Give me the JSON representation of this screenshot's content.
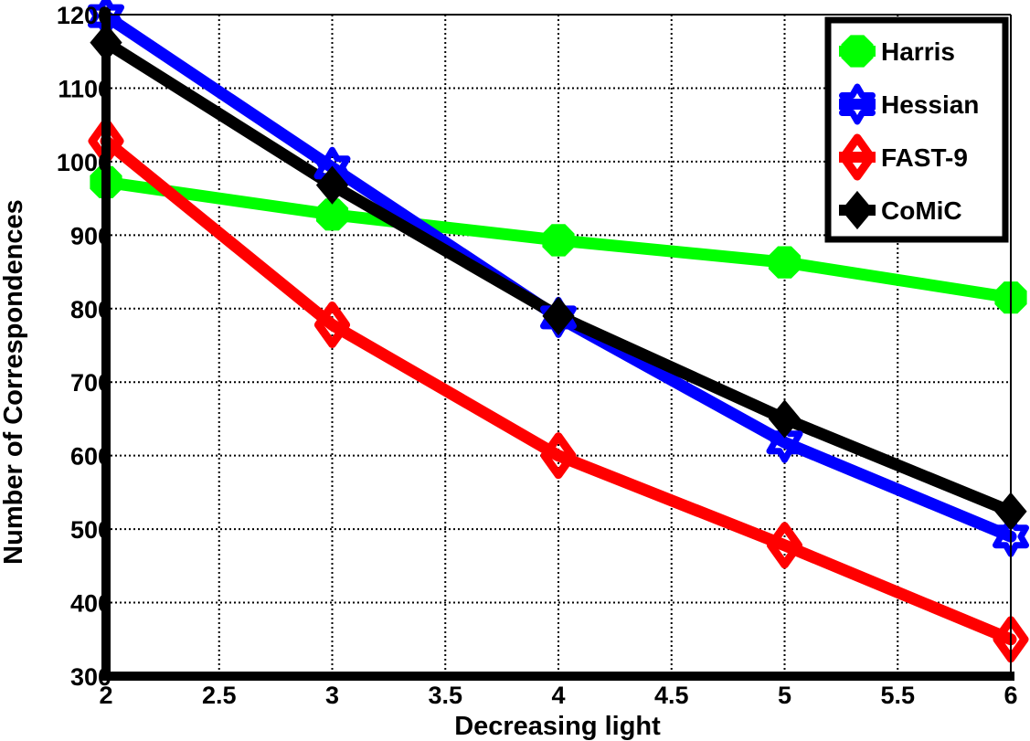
{
  "chart_data": {
    "type": "line",
    "title": "",
    "xlabel": "Decreasing light",
    "ylabel": "Number of Correspondences",
    "xlim": [
      2,
      6
    ],
    "ylim": [
      300,
      1200
    ],
    "x_ticks": [
      "2",
      "2.5",
      "3",
      "3.5",
      "4",
      "4.5",
      "5",
      "5.5",
      "6"
    ],
    "y_ticks": [
      "300",
      "400",
      "500",
      "600",
      "700",
      "800",
      "900",
      "1000",
      "1100",
      "1200"
    ],
    "grid": true,
    "legend_position": "top-right",
    "x": [
      2,
      3,
      4,
      5,
      6
    ],
    "series": [
      {
        "name": "Harris",
        "color": "#00ff00",
        "marker": "octagon",
        "values": [
          972,
          928,
          893,
          863,
          815
        ]
      },
      {
        "name": "Hessian",
        "color": "#0000ff",
        "marker": "hexagram",
        "values": [
          1198,
          992,
          788,
          618,
          490
        ]
      },
      {
        "name": "FAST-9",
        "color": "#ff0000",
        "marker": "diamond-open",
        "values": [
          1028,
          778,
          600,
          478,
          350
        ]
      },
      {
        "name": "CoMiC",
        "color": "#000000",
        "marker": "diamond",
        "values": [
          1162,
          968,
          790,
          650,
          524
        ]
      }
    ]
  }
}
